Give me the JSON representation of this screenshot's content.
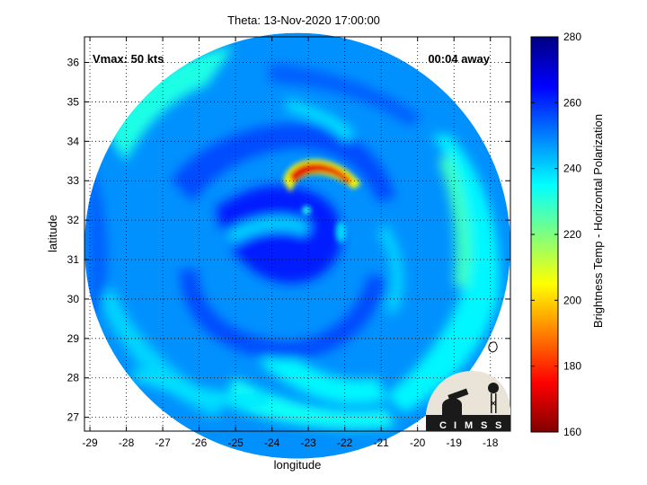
{
  "title": "Theta: 13-Nov-2020 17:00:00",
  "xlabel": "longitude",
  "ylabel": "latitude",
  "annotations": {
    "vmax": "Vmax: 50 kts",
    "away": "00:04 away"
  },
  "colorbar": {
    "label": "Brightness Temp - Horizontal Polarization",
    "min": 160,
    "max": 280,
    "ticks": [
      160,
      180,
      200,
      220,
      240,
      260,
      280
    ],
    "colormap": "jet-reversed"
  },
  "axes": {
    "xlim": [
      -29.15,
      -17.45
    ],
    "ylim": [
      26.65,
      36.65
    ],
    "xticks": [
      -29,
      -28,
      -27,
      -26,
      -25,
      -24,
      -23,
      -22,
      -21,
      -20,
      -19,
      -18
    ],
    "yticks": [
      27,
      28,
      29,
      30,
      31,
      32,
      33,
      34,
      35,
      36
    ],
    "grid": "dotted"
  },
  "swath": {
    "center_lon": -23.3,
    "center_lat": 31.35,
    "background_temp": 248
  },
  "features": [
    {
      "name": "cold-band-north",
      "lon": -22.55,
      "lat": 33.2,
      "temp": 172
    },
    {
      "name": "spiral-band-east",
      "lon": -19.6,
      "lat": 30.6,
      "temp": 228
    },
    {
      "name": "spiral-band-south",
      "lon": -22.6,
      "lat": 27.6,
      "temp": 232
    },
    {
      "name": "band-northwest",
      "lon": -27.6,
      "lat": 34.6,
      "temp": 226
    },
    {
      "name": "warm-core",
      "lon": -23.3,
      "lat": 31.0,
      "temp": 262
    }
  ],
  "logo": {
    "text": "CIMSS",
    "letters": [
      "C",
      "I",
      "M",
      "S",
      "S"
    ]
  }
}
